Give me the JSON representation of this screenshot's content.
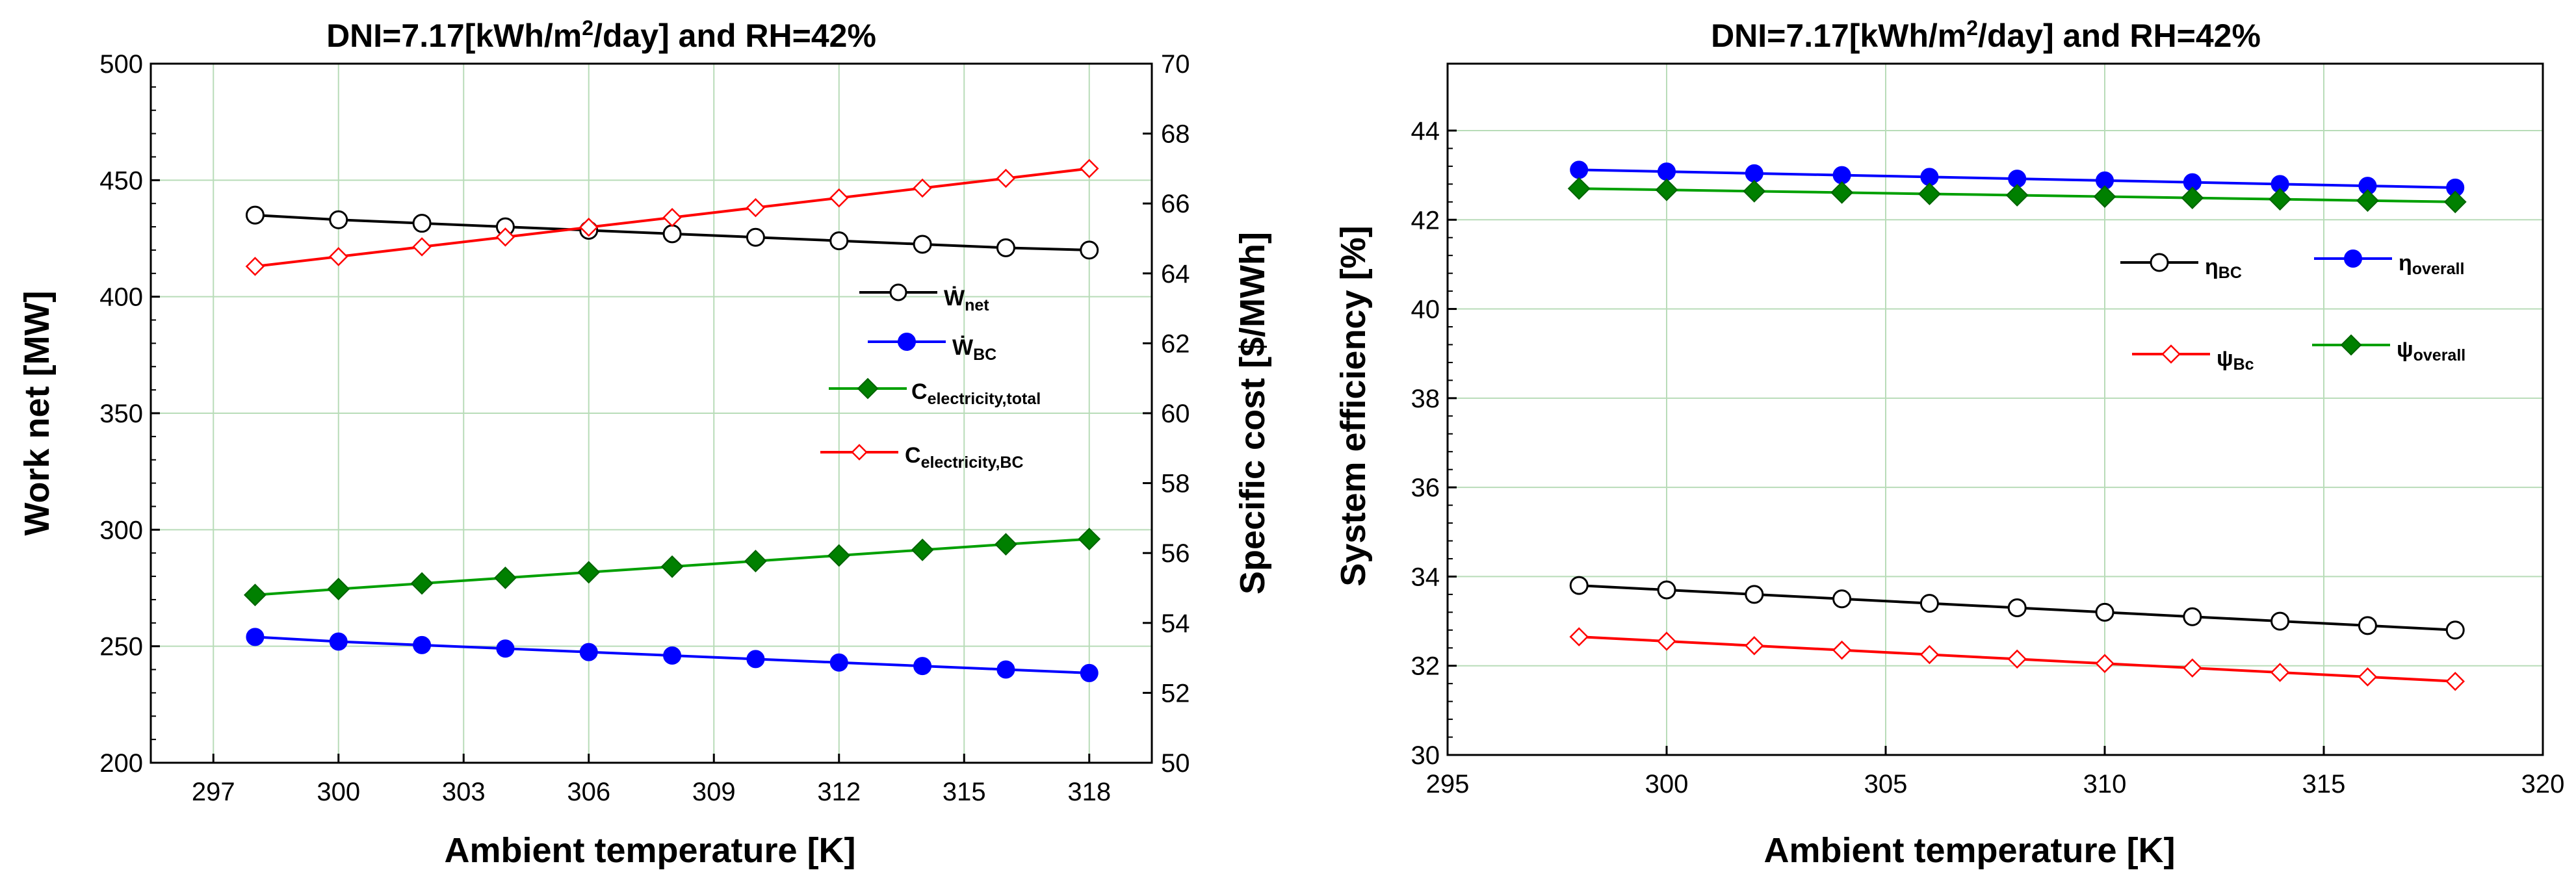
{
  "chart_data": [
    {
      "type": "line",
      "title": {
        "main": "DNI=7.17[kWh/m",
        "sup": "2",
        "rest": "/day] and RH=42%"
      },
      "xlabel": "Ambient temperature [K]",
      "ylabel": "Work net [MW]",
      "y2label": "Specific cost [$/MWh]",
      "xlim": [
        295.5,
        319.5
      ],
      "xticks": [
        297,
        300,
        303,
        306,
        309,
        312,
        315,
        318
      ],
      "ylim": [
        200,
        500
      ],
      "yticks": [
        200,
        250,
        300,
        350,
        400,
        450,
        500
      ],
      "y2lim": [
        50,
        70
      ],
      "y2ticks": [
        50,
        52,
        54,
        56,
        58,
        60,
        62,
        64,
        66,
        68,
        70
      ],
      "x": [
        298,
        300,
        302,
        304,
        306,
        308,
        310,
        312,
        314,
        316,
        318
      ],
      "series": [
        {
          "name": "Ẇ",
          "sub": "net",
          "axis": "left",
          "color": "#000000",
          "marker": "circle-open",
          "values": [
            435,
            433,
            431.5,
            430,
            428.5,
            427,
            425.5,
            424,
            422.5,
            421,
            420
          ]
        },
        {
          "name": "Ẇ",
          "sub": "BC",
          "axis": "left",
          "color": "#0000ff",
          "marker": "circle-filled",
          "values": [
            254,
            252,
            250.5,
            249,
            247.5,
            246,
            244.5,
            243,
            241.5,
            240,
            238.5
          ]
        },
        {
          "name": "C",
          "sub": "electricity,total",
          "axis": "right",
          "color": "#00a000",
          "marker": "diamond-filled",
          "values": [
            54.8,
            54.97,
            55.13,
            55.29,
            55.45,
            55.61,
            55.77,
            55.93,
            56.09,
            56.25,
            56.4
          ]
        },
        {
          "name": "C",
          "sub": "electricity,BC",
          "axis": "right",
          "color": "#ff0000",
          "marker": "diamond-open",
          "values": [
            64.2,
            64.48,
            64.76,
            65.04,
            65.32,
            65.6,
            65.88,
            66.16,
            66.44,
            66.72,
            67
          ]
        }
      ]
    },
    {
      "type": "line",
      "title": {
        "main": "DNI=7.17[kWh/m",
        "sup": "2",
        "rest": "/day] and RH=42%"
      },
      "xlabel": "Ambient temperature [K]",
      "ylabel": "System efficiency [%]",
      "xlim": [
        295,
        320
      ],
      "xticks": [
        295,
        300,
        305,
        310,
        315,
        320
      ],
      "ylim": [
        30,
        45.5
      ],
      "yticks": [
        30,
        32,
        34,
        36,
        38,
        40,
        42,
        44
      ],
      "x": [
        298,
        300,
        302,
        304,
        306,
        308,
        310,
        312,
        314,
        316,
        318
      ],
      "series": [
        {
          "name": "η",
          "sub": "BC",
          "color": "#000000",
          "marker": "circle-open",
          "values": [
            33.8,
            33.7,
            33.6,
            33.5,
            33.4,
            33.3,
            33.2,
            33.1,
            33.0,
            32.9,
            32.8
          ]
        },
        {
          "name": "η",
          "sub": "overall",
          "color": "#0000ff",
          "marker": "circle-filled",
          "values": [
            43.12,
            43.08,
            43.04,
            43.0,
            42.96,
            42.92,
            42.88,
            42.84,
            42.8,
            42.76,
            42.72
          ]
        },
        {
          "name": "ψ",
          "sub": "Bc",
          "color": "#ff0000",
          "marker": "diamond-open",
          "values": [
            32.65,
            32.55,
            32.45,
            32.35,
            32.25,
            32.15,
            32.05,
            31.95,
            31.85,
            31.75,
            31.65
          ]
        },
        {
          "name": "ψ",
          "sub": "overall",
          "color": "#00a000",
          "marker": "diamond-filled",
          "values": [
            42.7,
            42.67,
            42.64,
            42.61,
            42.58,
            42.55,
            42.52,
            42.49,
            42.46,
            42.43,
            42.4
          ]
        }
      ]
    }
  ]
}
